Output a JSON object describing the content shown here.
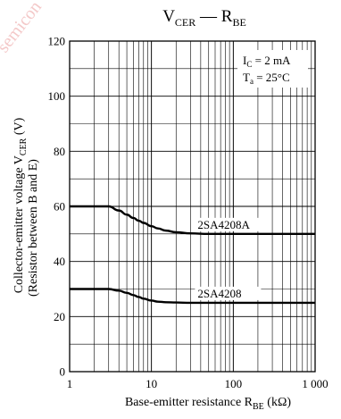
{
  "chart_data": {
    "type": "line",
    "title": {
      "main": "V",
      "sub": "CER",
      "dash": " — ",
      "main2": "R",
      "sub2": "BE"
    },
    "xaxis": {
      "label_main": "Base-emitter resistance  R",
      "label_sub": "BE",
      "label_unit": "  (kΩ)",
      "scale": "log",
      "range": [
        1,
        1000
      ],
      "ticks": [
        1,
        10,
        100,
        1000
      ],
      "tick_labels": [
        "1",
        "10",
        "100",
        "1 000"
      ]
    },
    "yaxis": {
      "label_line1_main": "Collector-emitter voltage   V",
      "label_line1_sub": "CER",
      "label_line1_unit": "  (V)",
      "label_line2": "(Resistor between B and E)",
      "range": [
        0,
        120
      ],
      "ticks": [
        0,
        20,
        40,
        60,
        80,
        100,
        120
      ],
      "tick_labels": [
        "0",
        "20",
        "40",
        "60",
        "80",
        "100",
        "120"
      ],
      "minor_step": 10
    },
    "grid": true,
    "conditions": {
      "line1": {
        "main": "I",
        "sub": "C",
        "rest": " = 2 mA"
      },
      "line2": {
        "main": "T",
        "sub": "a",
        "rest": " = 25°C"
      }
    },
    "series": [
      {
        "name": "2SA4208A",
        "x": [
          1,
          2,
          3,
          4,
          5,
          6,
          7,
          8,
          10,
          12,
          15,
          20,
          30,
          50,
          100,
          1000
        ],
        "y": [
          60,
          60,
          60,
          58.5,
          57,
          55.8,
          54.8,
          54,
          52.8,
          52,
          51.2,
          50.6,
          50.2,
          50,
          50,
          50
        ]
      },
      {
        "name": "2SA4208",
        "x": [
          1,
          2,
          3,
          4,
          5,
          6,
          7,
          8,
          10,
          12,
          15,
          20,
          30,
          50,
          100,
          1000
        ],
        "y": [
          30,
          30,
          30,
          29.4,
          28.6,
          27.8,
          27.1,
          26.5,
          25.8,
          25.4,
          25.2,
          25.1,
          25,
          25,
          25,
          25
        ]
      }
    ]
  },
  "watermark": "semicon"
}
